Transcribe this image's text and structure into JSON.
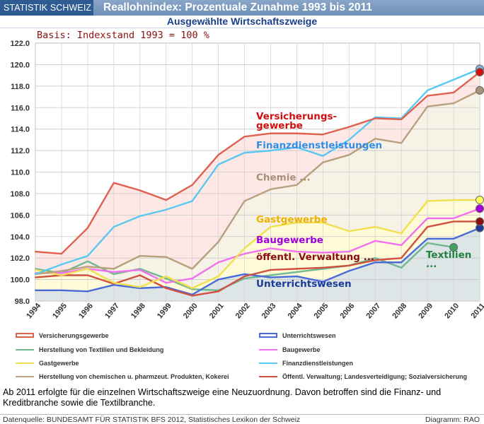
{
  "header": {
    "brand": "STATISTIK SCHWEIZ",
    "title": "Reallohnindex: Prozentuale Zunahme 1993 bis 2011",
    "subtitle": "Ausgewählte Wirtschaftszweige"
  },
  "chart_data": {
    "type": "line",
    "basis_note": "Basis: Indexstand 1993 = 100 %",
    "categories": [
      "1994",
      "1995",
      "1996",
      "1997",
      "1998",
      "1999",
      "2000",
      "2001",
      "2002",
      "2003",
      "2004",
      "2005",
      "2006",
      "2007",
      "2008",
      "2009",
      "2010",
      "2011"
    ],
    "ylim": [
      98,
      122
    ],
    "yticks": [
      "98.0",
      "100.0",
      "102.0",
      "104.0",
      "106.0",
      "108.0",
      "110.0",
      "112.0",
      "114.0",
      "116.0",
      "118.0",
      "120.0",
      "122.0"
    ],
    "grid": true,
    "series": [
      {
        "key": "vers",
        "name": "Versicherungsgewerbe",
        "color": "#e06050",
        "label_color": "#d01010",
        "inline_label": [
          "Versicherungs-",
          "gewerbe"
        ],
        "values": [
          102.6,
          102.4,
          104.8,
          109.0,
          108.3,
          107.4,
          108.8,
          111.6,
          113.3,
          113.6,
          113.6,
          113.5,
          114.2,
          115.0,
          114.9,
          117.1,
          117.4,
          119.3
        ]
      },
      {
        "key": "fin",
        "name": "Finanzdienstleistungen",
        "color": "#5ac8f0",
        "label_color": "#2f8fe6",
        "inline_label": [
          "Finanzdienstleistungen"
        ],
        "values": [
          100.5,
          101.4,
          102.2,
          104.9,
          105.9,
          106.5,
          107.3,
          110.7,
          111.8,
          112.0,
          112.3,
          111.5,
          113.0,
          115.1,
          115.0,
          117.6,
          118.6,
          119.6
        ]
      },
      {
        "key": "chem",
        "name": "Herstellung von chemischen u. pharmzeut. Produkten, Kokerei",
        "color": "#b8a080",
        "label_color": "#a89076",
        "inline_label": [
          "Chemie ..."
        ],
        "values": [
          100.5,
          100.8,
          101.2,
          101.0,
          102.2,
          102.1,
          101.0,
          103.5,
          107.3,
          108.4,
          108.8,
          110.9,
          111.6,
          113.1,
          112.7,
          116.1,
          116.4,
          117.6
        ]
      },
      {
        "key": "gast",
        "name": "Gastgewerbe",
        "color": "#f0e050",
        "label_color": "#f0b000",
        "inline_label": [
          "Gastgewerbe"
        ],
        "values": [
          100.9,
          100.4,
          101.0,
          99.7,
          99.3,
          100.3,
          99.2,
          100.3,
          102.9,
          104.9,
          105.3,
          105.3,
          104.5,
          104.9,
          104.3,
          107.3,
          107.4,
          107.4
        ]
      },
      {
        "key": "bau",
        "name": "Baugewerbe",
        "color": "#f070f0",
        "label_color": "#a000e0",
        "inline_label": [
          "Baugewerbe"
        ],
        "values": [
          100.6,
          100.6,
          101.0,
          100.7,
          100.9,
          99.7,
          100.1,
          101.6,
          102.4,
          102.9,
          102.6,
          102.5,
          102.6,
          103.6,
          103.2,
          105.7,
          105.7,
          106.6
        ]
      },
      {
        "key": "oeff",
        "name": "Öffentl. Verwaltung; Landesverteidigung; Sozialversicherung",
        "color": "#d05040",
        "label_color": "#8a1010",
        "inline_label": [
          "öffentl. Verwaltung ..."
        ],
        "values": [
          100.2,
          100.4,
          100.4,
          99.6,
          100.4,
          99.2,
          98.5,
          98.9,
          100.3,
          100.9,
          101.0,
          101.1,
          101.3,
          101.8,
          102.0,
          104.9,
          105.4,
          105.4
        ]
      },
      {
        "key": "text",
        "name": "Herstellung von Textilien und Bekleidung",
        "color": "#70b890",
        "label_color": "#208040",
        "inline_label": [
          "Textilien",
          "..."
        ],
        "values": [
          101.0,
          100.6,
          101.7,
          100.5,
          101.0,
          100.1,
          99.1,
          99.0,
          100.1,
          100.4,
          100.7,
          101.0,
          101.3,
          102.0,
          101.1,
          103.4,
          103.0,
          null
        ]
      },
      {
        "key": "unt",
        "name": "Unterrichtswesen",
        "color": "#4a6ad8",
        "label_color": "#1a3a98",
        "inline_label": [
          "Unterrichtswesen"
        ],
        "values": [
          99.0,
          99.0,
          98.9,
          99.5,
          99.2,
          99.3,
          98.6,
          100.0,
          100.5,
          100.2,
          100.3,
          99.8,
          100.8,
          101.6,
          101.6,
          103.8,
          103.8,
          104.8
        ]
      }
    ]
  },
  "legend": {
    "items": [
      {
        "label": "Versicherungsgewerbe",
        "color": "#e06050",
        "style": "box"
      },
      {
        "label": "Unterrichtswesen",
        "color": "#4a6ad8",
        "style": "box"
      },
      {
        "label": "Herstellung von Textilien und Bekleidung",
        "color": "#70b890",
        "style": "line"
      },
      {
        "label": "Baugewerbe",
        "color": "#f070f0",
        "style": "line"
      },
      {
        "label": "Gastgewerbe",
        "color": "#f0e050",
        "style": "line"
      },
      {
        "label": "Finanzdienstleistungen",
        "color": "#5ac8f0",
        "style": "line"
      },
      {
        "label": "Herstellung von chemischen u. pharmzeut. Produkten, Kokerei",
        "color": "#b8a080",
        "style": "line"
      },
      {
        "label": "Öffentl. Verwaltung; Landesverteidigung; Sozialversicherung",
        "color": "#d05040",
        "style": "line"
      }
    ]
  },
  "note": "Ab 2011 erfolgte für die einzelnen Wirtschaftszweige eine Neuzuordnung. Davon betroffen sind die Finanz- und Kreditbranche sowie die Textilbranche.",
  "footer": {
    "source": "Datenquelle: BUNDESAMT FÜR STATISTIK BFS 2012, Statistisches Lexikon der Schweiz",
    "credit": "Diagramm: RAO"
  }
}
